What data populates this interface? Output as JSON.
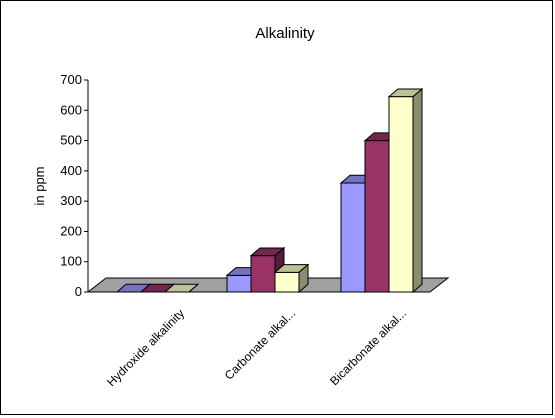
{
  "chart_data": {
    "type": "bar",
    "title": "Alkalinity",
    "ylabel": "in ppm",
    "xlabel": "",
    "categories": [
      "Hydroxide alkalinity",
      "Carbonate alkal...",
      "Bicarbonate alkal..."
    ],
    "series": [
      {
        "values": [
          0,
          55,
          360
        ]
      },
      {
        "values": [
          0,
          120,
          500
        ]
      },
      {
        "values": [
          0,
          65,
          645
        ]
      }
    ],
    "ylim": [
      0,
      700
    ],
    "yticks": [
      0,
      100,
      200,
      300,
      400,
      500,
      600,
      700
    ],
    "grid": false,
    "legend": "none",
    "three_d": true,
    "colors": {
      "series": [
        "#9999ff",
        "#993366",
        "#ffffcc"
      ],
      "floor": "#a0a0a0",
      "axis": "#000000"
    }
  }
}
